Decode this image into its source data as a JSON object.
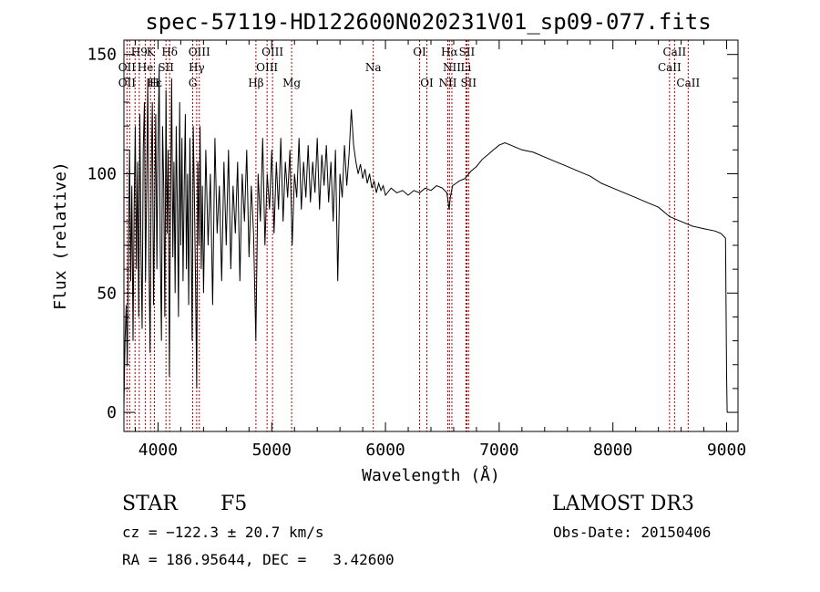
{
  "chart_data": {
    "type": "line",
    "title": "spec-57119-HD122600N020231V01_sp09-077.fits",
    "xlabel": "Wavelength (Å)",
    "ylabel": "Flux (relative)",
    "xlim": [
      3700,
      9100
    ],
    "ylim": [
      -8,
      156
    ],
    "x_ticks": [
      4000,
      5000,
      6000,
      7000,
      8000,
      9000
    ],
    "y_ticks": [
      0,
      50,
      100,
      150
    ],
    "series": [
      {
        "name": "flux",
        "points": [
          [
            3700,
            2
          ],
          [
            3710,
            30
          ],
          [
            3720,
            45
          ],
          [
            3730,
            20
          ],
          [
            3740,
            70
          ],
          [
            3750,
            110
          ],
          [
            3760,
            55
          ],
          [
            3770,
            95
          ],
          [
            3780,
            30
          ],
          [
            3790,
            85
          ],
          [
            3800,
            120
          ],
          [
            3810,
            60
          ],
          [
            3820,
            105
          ],
          [
            3830,
            40
          ],
          [
            3840,
            125
          ],
          [
            3850,
            70
          ],
          [
            3860,
            35
          ],
          [
            3870,
            110
          ],
          [
            3880,
            130
          ],
          [
            3890,
            55
          ],
          [
            3900,
            95
          ],
          [
            3910,
            140
          ],
          [
            3920,
            65
          ],
          [
            3930,
            25
          ],
          [
            3940,
            100
          ],
          [
            3950,
            130
          ],
          [
            3960,
            45
          ],
          [
            3970,
            85
          ],
          [
            3980,
            125
          ],
          [
            3990,
            60
          ],
          [
            4000,
            110
          ],
          [
            4010,
            145
          ],
          [
            4020,
            70
          ],
          [
            4030,
            30
          ],
          [
            4040,
            120
          ],
          [
            4050,
            95
          ],
          [
            4060,
            40
          ],
          [
            4070,
            135
          ],
          [
            4080,
            75
          ],
          [
            4090,
            110
          ],
          [
            4100,
            15
          ],
          [
            4110,
            90
          ],
          [
            4120,
            140
          ],
          [
            4130,
            65
          ],
          [
            4140,
            105
          ],
          [
            4150,
            50
          ],
          [
            4160,
            120
          ],
          [
            4170,
            85
          ],
          [
            4180,
            40
          ],
          [
            4190,
            130
          ],
          [
            4200,
            70
          ],
          [
            4210,
            115
          ],
          [
            4220,
            55
          ],
          [
            4230,
            95
          ],
          [
            4240,
            125
          ],
          [
            4250,
            60
          ],
          [
            4260,
            100
          ],
          [
            4270,
            45
          ],
          [
            4280,
            115
          ],
          [
            4290,
            80
          ],
          [
            4300,
            30
          ],
          [
            4310,
            120
          ],
          [
            4320,
            90
          ],
          [
            4330,
            55
          ],
          [
            4340,
            10
          ],
          [
            4350,
            105
          ],
          [
            4360,
            70
          ],
          [
            4370,
            120
          ],
          [
            4380,
            60
          ],
          [
            4390,
            95
          ],
          [
            4400,
            50
          ],
          [
            4420,
            110
          ],
          [
            4440,
            70
          ],
          [
            4460,
            100
          ],
          [
            4480,
            45
          ],
          [
            4500,
            115
          ],
          [
            4520,
            75
          ],
          [
            4540,
            95
          ],
          [
            4560,
            55
          ],
          [
            4580,
            105
          ],
          [
            4600,
            70
          ],
          [
            4620,
            110
          ],
          [
            4640,
            60
          ],
          [
            4660,
            95
          ],
          [
            4680,
            75
          ],
          [
            4700,
            105
          ],
          [
            4720,
            55
          ],
          [
            4740,
            100
          ],
          [
            4760,
            80
          ],
          [
            4780,
            110
          ],
          [
            4800,
            65
          ],
          [
            4820,
            95
          ],
          [
            4840,
            75
          ],
          [
            4860,
            30
          ],
          [
            4880,
            100
          ],
          [
            4900,
            80
          ],
          [
            4920,
            115
          ],
          [
            4940,
            70
          ],
          [
            4960,
            100
          ],
          [
            4980,
            85
          ],
          [
            5000,
            110
          ],
          [
            5020,
            75
          ],
          [
            5040,
            105
          ],
          [
            5060,
            85
          ],
          [
            5080,
            115
          ],
          [
            5100,
            80
          ],
          [
            5120,
            105
          ],
          [
            5140,
            90
          ],
          [
            5160,
            110
          ],
          [
            5180,
            70
          ],
          [
            5200,
            100
          ],
          [
            5220,
            90
          ],
          [
            5240,
            115
          ],
          [
            5260,
            85
          ],
          [
            5280,
            105
          ],
          [
            5300,
            90
          ],
          [
            5320,
            112
          ],
          [
            5340,
            88
          ],
          [
            5360,
            105
          ],
          [
            5380,
            92
          ],
          [
            5400,
            115
          ],
          [
            5420,
            85
          ],
          [
            5440,
            108
          ],
          [
            5460,
            95
          ],
          [
            5480,
            112
          ],
          [
            5500,
            88
          ],
          [
            5520,
            105
          ],
          [
            5540,
            80
          ],
          [
            5560,
            110
          ],
          [
            5580,
            55
          ],
          [
            5600,
            100
          ],
          [
            5620,
            90
          ],
          [
            5640,
            112
          ],
          [
            5660,
            95
          ],
          [
            5680,
            108
          ],
          [
            5700,
            127
          ],
          [
            5720,
            112
          ],
          [
            5740,
            105
          ],
          [
            5760,
            100
          ],
          [
            5780,
            104
          ],
          [
            5800,
            98
          ],
          [
            5820,
            102
          ],
          [
            5840,
            96
          ],
          [
            5860,
            100
          ],
          [
            5880,
            94
          ],
          [
            5900,
            97
          ],
          [
            5920,
            92
          ],
          [
            5940,
            96
          ],
          [
            5960,
            93
          ],
          [
            5980,
            95
          ],
          [
            6000,
            91
          ],
          [
            6050,
            94
          ],
          [
            6100,
            92
          ],
          [
            6150,
            93
          ],
          [
            6200,
            91
          ],
          [
            6250,
            93
          ],
          [
            6300,
            92
          ],
          [
            6350,
            94
          ],
          [
            6400,
            93
          ],
          [
            6450,
            95
          ],
          [
            6500,
            94
          ],
          [
            6540,
            92
          ],
          [
            6560,
            85
          ],
          [
            6570,
            90
          ],
          [
            6590,
            95
          ],
          [
            6620,
            96
          ],
          [
            6650,
            97
          ],
          [
            6700,
            98
          ],
          [
            6750,
            101
          ],
          [
            6800,
            103
          ],
          [
            6850,
            106
          ],
          [
            6900,
            108
          ],
          [
            6950,
            110
          ],
          [
            7000,
            112
          ],
          [
            7050,
            113
          ],
          [
            7100,
            112
          ],
          [
            7150,
            111
          ],
          [
            7200,
            110
          ],
          [
            7300,
            109
          ],
          [
            7400,
            107
          ],
          [
            7500,
            105
          ],
          [
            7600,
            103
          ],
          [
            7700,
            101
          ],
          [
            7800,
            99
          ],
          [
            7900,
            96
          ],
          [
            8000,
            94
          ],
          [
            8100,
            92
          ],
          [
            8200,
            90
          ],
          [
            8300,
            88
          ],
          [
            8400,
            86
          ],
          [
            8500,
            82
          ],
          [
            8600,
            80
          ],
          [
            8700,
            78
          ],
          [
            8800,
            77
          ],
          [
            8900,
            76
          ],
          [
            8950,
            75
          ],
          [
            8990,
            73
          ],
          [
            9000,
            15
          ],
          [
            9005,
            0
          ]
        ]
      }
    ],
    "annotations": [
      {
        "label": "H9",
        "x": 3835,
        "row": 0
      },
      {
        "label": "K",
        "x": 3934,
        "row": 0
      },
      {
        "label": "Hδ",
        "x": 4102,
        "row": 0
      },
      {
        "label": "OIII",
        "x": 4363,
        "row": 0
      },
      {
        "label": "OIII",
        "x": 5007,
        "row": 0
      },
      {
        "label": "OI",
        "x": 6300,
        "row": 0
      },
      {
        "label": "Hα",
        "x": 6563,
        "row": 0
      },
      {
        "label": "SII",
        "x": 6716,
        "row": 0
      },
      {
        "label": "CaII",
        "x": 8542,
        "row": 0
      },
      {
        "label": "OII",
        "x": 3727,
        "row": 1
      },
      {
        "label": "He",
        "x": 3889,
        "row": 1
      },
      {
        "label": "SII",
        "x": 4070,
        "row": 1
      },
      {
        "label": "Hγ",
        "x": 4340,
        "row": 1
      },
      {
        "label": "OIII",
        "x": 4959,
        "row": 1
      },
      {
        "label": "Na",
        "x": 5893,
        "row": 1
      },
      {
        "label": "NII",
        "x": 6584,
        "row": 1
      },
      {
        "label": "Li",
        "x": 6708,
        "row": 1
      },
      {
        "label": "CaII",
        "x": 8498,
        "row": 1
      },
      {
        "label": "OII",
        "x": 3727,
        "row": 2
      },
      {
        "label": "Hε",
        "x": 3970,
        "row": 2
      },
      {
        "label": "H",
        "x": 3968,
        "row": 2
      },
      {
        "label": "G",
        "x": 4305,
        "row": 2
      },
      {
        "label": "Hβ",
        "x": 4861,
        "row": 2
      },
      {
        "label": "Mg",
        "x": 5175,
        "row": 2
      },
      {
        "label": "OI",
        "x": 6364,
        "row": 2
      },
      {
        "label": "NII",
        "x": 6548,
        "row": 2
      },
      {
        "label": "SII",
        "x": 6731,
        "row": 2
      },
      {
        "label": "CaII",
        "x": 8662,
        "row": 2
      }
    ],
    "line_markers": [
      3727,
      3750,
      3798,
      3835,
      3889,
      3934,
      3968,
      4070,
      4102,
      4305,
      4340,
      4363,
      4861,
      4959,
      5007,
      5175,
      5893,
      6300,
      6364,
      6548,
      6563,
      6584,
      6708,
      6716,
      6731,
      8498,
      8542,
      8662
    ]
  },
  "info": {
    "object_type": "STAR",
    "subclass": "F5",
    "survey": "LAMOST DR3",
    "redshift_text": "cz = −122.3 ± 20.7 km/s",
    "obs_date": "Obs-Date: 20150406",
    "coords": "RA = 186.95644, DEC =   3.42600"
  },
  "colors": {
    "marker": "#b30000",
    "line": "#000000"
  }
}
